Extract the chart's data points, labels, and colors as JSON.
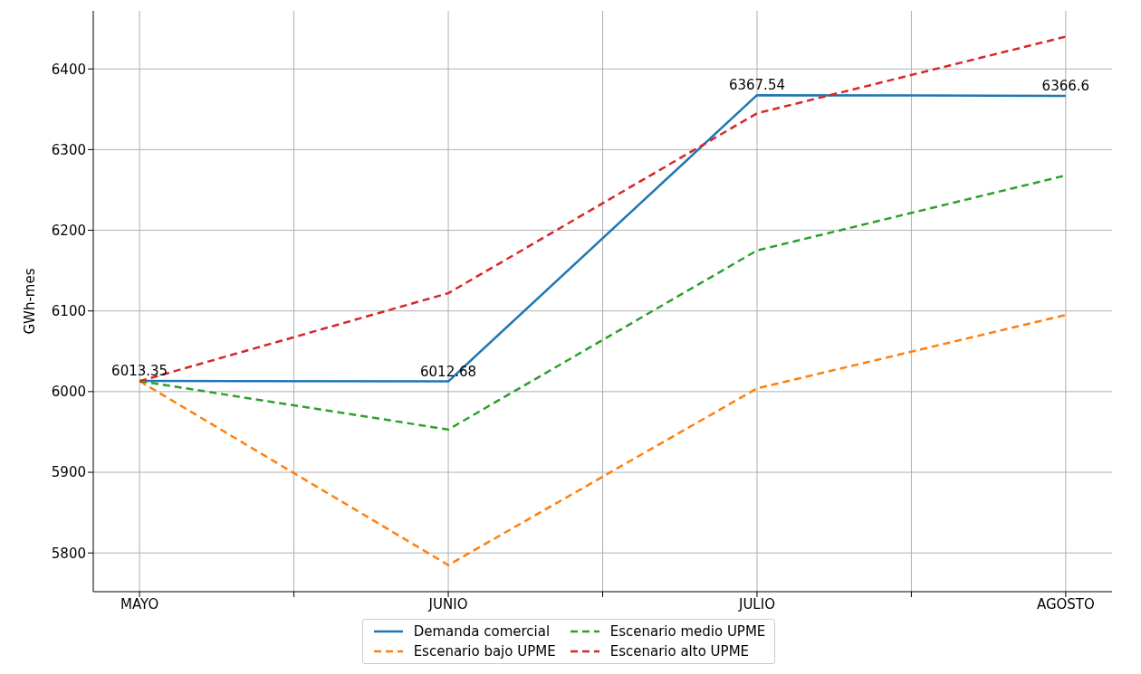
{
  "chart_data": {
    "type": "line",
    "ylabel": "GWh-mes",
    "categories": [
      "MAYO",
      "JUNIO",
      "JULIO",
      "AGOSTO"
    ],
    "series": [
      {
        "name": "Demanda comercial",
        "color": "#1f77b4",
        "line_style": "solid",
        "values": [
          6013.35,
          6012.68,
          6367.54,
          6366.6
        ],
        "value_labels": [
          "6013.35",
          "6012.68",
          "6367.54",
          "6366.6"
        ]
      },
      {
        "name": "Escenario bajo UPME",
        "color": "#ff7f0e",
        "line_style": "dashed",
        "values": [
          6013,
          5785,
          6004,
          6095
        ]
      },
      {
        "name": "Escenario medio UPME",
        "color": "#2ca02c",
        "line_style": "dashed",
        "values": [
          6013,
          5953,
          6175,
          6268
        ]
      },
      {
        "name": "Escenario alto UPME",
        "color": "#d62728",
        "line_style": "dashed",
        "values": [
          6013,
          6122,
          6345,
          6440
        ]
      }
    ],
    "ylim": [
      5752,
      6472
    ],
    "yticks": [
      5800,
      5900,
      6000,
      6100,
      6200,
      6300,
      6400
    ],
    "grid": true,
    "legend": "bottom",
    "marker": "none"
  }
}
